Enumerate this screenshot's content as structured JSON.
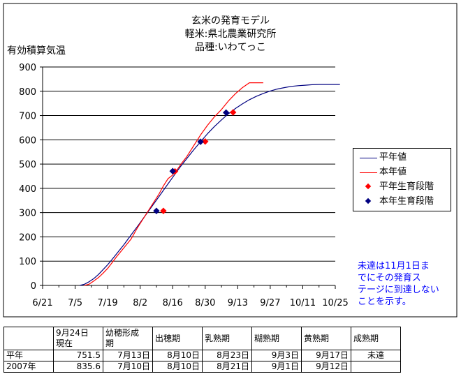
{
  "chart_data": {
    "type": "line",
    "title_lines": [
      "玄米の発育モデル",
      "軽米:県北農業研究所",
      "品種:いわてっこ"
    ],
    "ylabel": "有効積算気温",
    "xlabel": "",
    "x_ticks": [
      "6/21",
      "7/5",
      "7/19",
      "8/2",
      "8/16",
      "8/30",
      "9/13",
      "9/27",
      "10/11",
      "10/25"
    ],
    "x_tick_days": [
      0,
      14,
      28,
      42,
      56,
      70,
      84,
      98,
      112,
      126
    ],
    "xlim_days": [
      0,
      126
    ],
    "ylim": [
      0,
      900
    ],
    "y_ticks": [
      0,
      100,
      200,
      300,
      400,
      500,
      600,
      700,
      800,
      900
    ],
    "grid": "horizontal",
    "legend_position": "right",
    "colors": {
      "normal": "#000080",
      "current": "#ff0000",
      "normal_stage": "#ff0000",
      "current_stage": "#000080"
    },
    "series": [
      {
        "name": "平年値",
        "kind": "line",
        "color": "#000080",
        "x_days": [
          16,
          18,
          20,
          22,
          24,
          26,
          28,
          30,
          32,
          35,
          38,
          41,
          44,
          47,
          50,
          53,
          56,
          59,
          62,
          65,
          68,
          71,
          74,
          77,
          80,
          83,
          86,
          89,
          92,
          95,
          98,
          101,
          104,
          107,
          110,
          113,
          116,
          119,
          122,
          125,
          128
        ],
        "values": [
          0,
          5,
          15,
          28,
          45,
          65,
          85,
          108,
          132,
          168,
          207,
          245,
          285,
          325,
          365,
          405,
          445,
          485,
          522,
          558,
          592,
          625,
          655,
          682,
          707,
          729,
          748,
          765,
          779,
          791,
          801,
          809,
          815,
          820,
          823,
          825,
          827,
          828,
          828,
          828,
          828
        ]
      },
      {
        "name": "本年値",
        "kind": "line",
        "color": "#ff0000",
        "x_days": [
          18,
          20,
          22,
          24,
          26,
          28,
          30,
          32,
          35,
          38,
          41,
          44,
          47,
          50,
          52,
          54,
          56,
          58,
          60,
          62,
          65,
          68,
          71,
          74,
          77,
          80,
          83,
          86,
          89,
          92,
          94,
          95
        ],
        "values": [
          0,
          5,
          18,
          32,
          50,
          70,
          95,
          120,
          155,
          190,
          240,
          285,
          330,
          375,
          410,
          440,
          455,
          478,
          505,
          530,
          575,
          620,
          660,
          695,
          725,
          760,
          790,
          815,
          835,
          835,
          835,
          835
        ]
      },
      {
        "name": "平年生育段階",
        "kind": "marker",
        "color": "#ff0000",
        "x_days": [
          52,
          57,
          70,
          82
        ],
        "values": [
          307,
          470,
          593,
          713
        ]
      },
      {
        "name": "本年生育段階",
        "kind": "marker",
        "color": "#000080",
        "x_days": [
          49,
          56,
          68,
          79
        ],
        "values": [
          307,
          471,
          592,
          712
        ]
      }
    ]
  },
  "note_lines": [
    "未達は11月1日ま",
    "でにその発育ス",
    "テージに到達しない",
    "ことを示す。"
  ],
  "table": {
    "headers": [
      "",
      "9月24日\n現在",
      "幼穂形成\n期",
      "出穂期",
      "乳熟期",
      "糊熟期",
      "黄熟期",
      "成熟期"
    ],
    "rows": [
      [
        "平年",
        "751.5",
        "7月13日",
        "8月10日",
        "8月23日",
        "9月3日",
        "9月17日",
        "未達"
      ],
      [
        "2007年",
        "835.6",
        "7月10日",
        "8月10日",
        "8月21日",
        "9月1日",
        "9月12日",
        ""
      ]
    ]
  }
}
